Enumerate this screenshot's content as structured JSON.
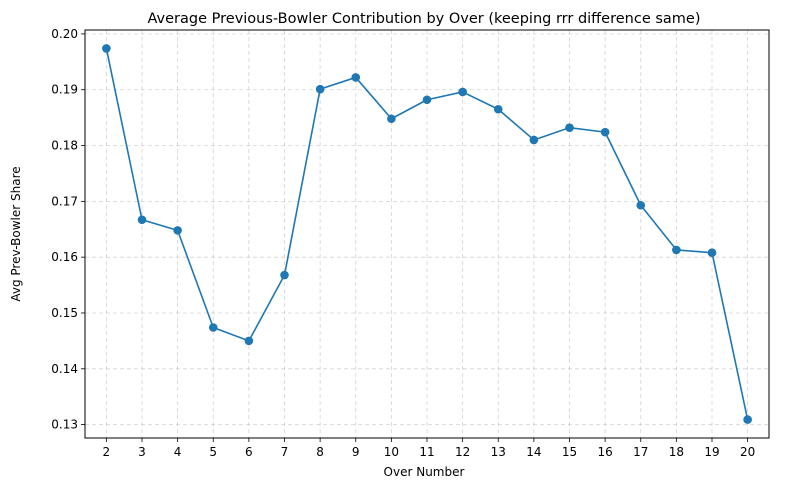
{
  "chart_data": {
    "type": "line",
    "title": "Average Previous-Bowler Contribution by Over (keeping rrr difference same)",
    "xlabel": "Over Number",
    "ylabel": "Avg Prev-Bowler Share",
    "x": [
      2,
      3,
      4,
      5,
      6,
      7,
      8,
      9,
      10,
      11,
      12,
      13,
      14,
      15,
      16,
      17,
      18,
      19,
      20
    ],
    "series": [
      {
        "values": [
          0.1974,
          0.1667,
          0.1648,
          0.1474,
          0.145,
          0.1568,
          0.1901,
          0.1922,
          0.1848,
          0.1882,
          0.1896,
          0.1865,
          0.181,
          0.1832,
          0.1824,
          0.1693,
          0.1613,
          0.1608,
          0.1309
        ],
        "color": "#1f77b4",
        "marker": "circle"
      }
    ],
    "xlim": [
      1.4,
      20.6
    ],
    "ylim": [
      0.1276,
      0.2007
    ],
    "yticks": [
      0.13,
      0.14,
      0.15,
      0.16,
      0.17,
      0.18,
      0.19,
      0.2
    ],
    "ytick_labels": [
      "0.13",
      "0.14",
      "0.15",
      "0.16",
      "0.17",
      "0.18",
      "0.19",
      "0.20"
    ],
    "grid": true,
    "grid_style": "dashed"
  }
}
